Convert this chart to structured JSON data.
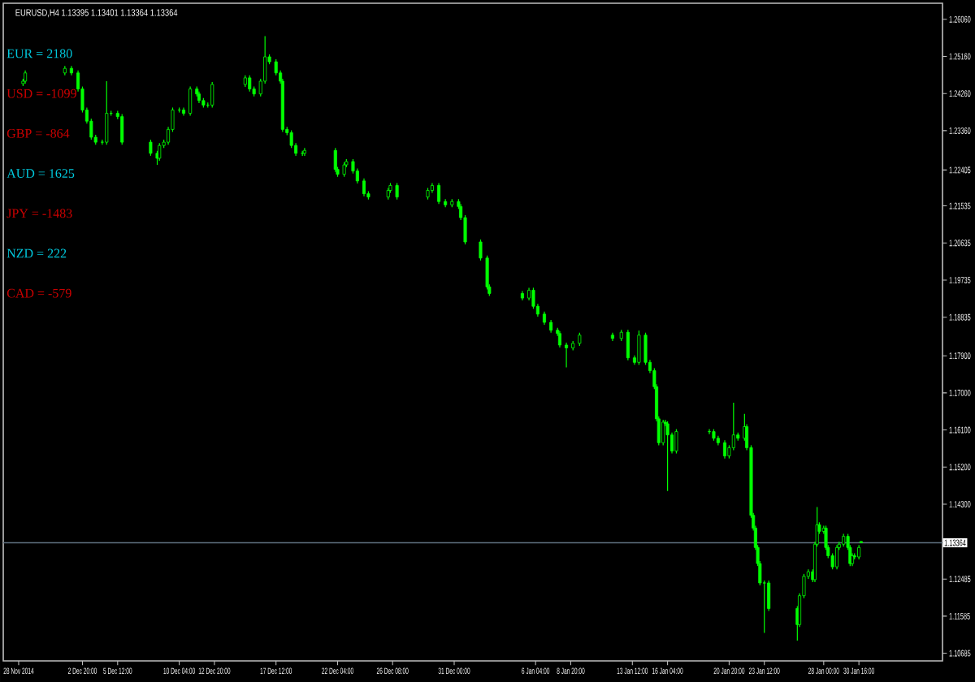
{
  "chart_data": {
    "type": "candlestick",
    "title": "EURUSD,H4 1.13395 1.13401 1.13364 1.13364",
    "color": "#00ff00",
    "x": [
      "2014-11-28T08:00",
      "2014-11-28T12:00",
      "2014-12-01T12:00",
      "2014-12-02T00:00",
      "2014-12-02T12:00",
      "2014-12-02T20:00",
      "2014-12-03T04:00",
      "2014-12-03T12:00",
      "2014-12-03T20:00",
      "2014-12-04T08:00",
      "2014-12-04T16:00",
      "2014-12-05T00:00",
      "2014-12-05T12:00",
      "2014-12-05T20:00",
      "2014-12-08T00:00",
      "2014-12-08T12:00",
      "2014-12-08T16:00",
      "2014-12-09T00:00",
      "2014-12-09T08:00",
      "2014-12-09T16:00",
      "2014-12-10T04:00",
      "2014-12-10T12:00",
      "2014-12-11T00:00",
      "2014-12-11T12:00",
      "2014-12-11T16:00",
      "2014-12-12T00:00",
      "2014-12-12T08:00",
      "2014-12-12T16:00",
      "2014-12-15T04:00",
      "2014-12-15T12:00",
      "2014-12-15T20:00",
      "2014-12-16T08:00",
      "2014-12-16T16:00",
      "2014-12-17T00:00",
      "2014-12-17T12:00",
      "2014-12-17T20:00",
      "2014-12-18T00:00",
      "2014-12-18T08:00",
      "2014-12-18T16:00",
      "2014-12-19T00:00",
      "2014-12-19T12:00",
      "2014-12-19T16:00",
      "2014-12-22T00:00",
      "2014-12-22T04:00",
      "2014-12-22T16:00",
      "2014-12-22T20:00",
      "2014-12-23T08:00",
      "2014-12-23T16:00",
      "2014-12-24T04:00",
      "2014-12-24T12:00",
      "2014-12-26T00:00",
      "2014-12-26T04:00",
      "2014-12-26T16:00",
      "2014-12-29T00:00",
      "2014-12-29T08:00",
      "2014-12-29T20:00",
      "2014-12-30T08:00",
      "2014-12-30T20:00",
      "2014-12-31T08:00",
      "2014-12-31T12:00",
      "2014-12-31T20:00",
      "2015-01-02T00:00",
      "2015-01-02T12:00",
      "2015-01-02T16:00",
      "2015-01-05T04:00",
      "2015-01-05T16:00",
      "2015-01-06T00:00",
      "2015-01-06T08:00",
      "2015-01-06T20:00",
      "2015-01-07T08:00",
      "2015-01-07T20:00",
      "2015-01-08T00:00",
      "2015-01-08T12:00",
      "2015-01-09T00:00",
      "2015-01-09T12:00",
      "2015-01-12T00:00",
      "2015-01-12T16:00",
      "2015-01-13T04:00",
      "2015-01-13T16:00",
      "2015-01-14T00:00",
      "2015-01-14T12:00",
      "2015-01-14T20:00",
      "2015-01-15T04:00",
      "2015-01-15T08:00",
      "2015-01-15T12:00",
      "2015-01-15T20:00",
      "2015-01-16T00:00",
      "2015-01-16T04:00",
      "2015-01-16T12:00",
      "2015-01-16T20:00",
      "2015-01-19T08:00",
      "2015-01-19T16:00",
      "2015-01-20T00:00",
      "2015-01-20T12:00",
      "2015-01-20T20:00",
      "2015-01-21T04:00",
      "2015-01-21T12:00",
      "2015-01-22T00:00",
      "2015-01-22T04:00",
      "2015-01-22T12:00",
      "2015-01-22T16:00",
      "2015-01-22T20:00",
      "2015-01-23T00:00",
      "2015-01-23T04:00",
      "2015-01-23T12:00",
      "2015-01-23T20:00",
      "2015-01-26T00:00",
      "2015-01-26T04:00",
      "2015-01-26T12:00",
      "2015-01-26T20:00",
      "2015-01-27T04:00",
      "2015-01-27T08:00",
      "2015-01-27T12:00",
      "2015-01-27T16:00",
      "2015-01-28T00:00",
      "2015-01-28T04:00",
      "2015-01-28T08:00",
      "2015-01-28T16:00",
      "2015-01-29T00:00",
      "2015-01-29T04:00",
      "2015-01-29T12:00",
      "2015-01-29T20:00",
      "2015-01-30T00:00",
      "2015-01-30T04:00",
      "2015-01-30T08:00",
      "2015-01-30T16:00",
      "2015-01-30T20:00"
    ],
    "ohlc": [
      [
        1.245,
        1.2462,
        1.2444,
        1.2456
      ],
      [
        1.2456,
        1.2482,
        1.245,
        1.2476
      ],
      [
        1.2476,
        1.2493,
        1.247,
        1.2487
      ],
      [
        1.2487,
        1.2493,
        1.247,
        1.2476
      ],
      [
        1.2476,
        1.2482,
        1.2431,
        1.2437
      ],
      [
        1.2437,
        1.2443,
        1.238,
        1.2386
      ],
      [
        1.2386,
        1.2392,
        1.2353,
        1.2359
      ],
      [
        1.2359,
        1.2365,
        1.2314,
        1.232
      ],
      [
        1.232,
        1.2326,
        1.2302,
        1.2308
      ],
      [
        1.2308,
        1.2314,
        1.2302,
        1.2308
      ],
      [
        1.2308,
        1.2456,
        1.2302,
        1.2378
      ],
      [
        1.2378,
        1.2384,
        1.2372,
        1.2378
      ],
      [
        1.2378,
        1.2384,
        1.2364,
        1.237
      ],
      [
        1.237,
        1.2376,
        1.2302,
        1.2308
      ],
      [
        1.2308,
        1.2314,
        1.2275,
        1.2281
      ],
      [
        1.2281,
        1.2287,
        1.2253,
        1.2269
      ],
      [
        1.2269,
        1.2306,
        1.2263,
        1.23
      ],
      [
        1.23,
        1.2314,
        1.2294,
        1.2308
      ],
      [
        1.2308,
        1.2345,
        1.2302,
        1.2339
      ],
      [
        1.2339,
        1.2392,
        1.2333,
        1.2386
      ],
      [
        1.2386,
        1.2392,
        1.238,
        1.2386
      ],
      [
        1.2386,
        1.2392,
        1.2372,
        1.2378
      ],
      [
        1.2378,
        1.2443,
        1.2372,
        1.2437
      ],
      [
        1.2437,
        1.2443,
        1.2419,
        1.2425
      ],
      [
        1.2425,
        1.2431,
        1.2403,
        1.2409
      ],
      [
        1.2409,
        1.2415,
        1.2392,
        1.2398
      ],
      [
        1.2398,
        1.2404,
        1.2392,
        1.2398
      ],
      [
        1.2398,
        1.2454,
        1.2392,
        1.2448
      ],
      [
        1.2448,
        1.247,
        1.2442,
        1.2464
      ],
      [
        1.2464,
        1.247,
        1.2431,
        1.2437
      ],
      [
        1.2437,
        1.2443,
        1.2419,
        1.2425
      ],
      [
        1.2425,
        1.2462,
        1.2419,
        1.2456
      ],
      [
        1.2456,
        1.2565,
        1.245,
        1.2515
      ],
      [
        1.2515,
        1.2521,
        1.2497,
        1.2503
      ],
      [
        1.2503,
        1.2509,
        1.247,
        1.2476
      ],
      [
        1.2476,
        1.2482,
        1.245,
        1.2456
      ],
      [
        1.2456,
        1.2462,
        1.2333,
        1.2339
      ],
      [
        1.2339,
        1.2345,
        1.2325,
        1.2331
      ],
      [
        1.2331,
        1.2337,
        1.2294,
        1.23
      ],
      [
        1.23,
        1.2306,
        1.2275,
        1.2281
      ],
      [
        1.2281,
        1.2287,
        1.2275,
        1.2281
      ],
      [
        1.2281,
        1.2294,
        1.2275,
        1.2288
      ],
      [
        1.2288,
        1.2294,
        1.2236,
        1.2242
      ],
      [
        1.2242,
        1.2248,
        1.2224,
        1.223
      ],
      [
        1.223,
        1.2259,
        1.2224,
        1.2253
      ],
      [
        1.2253,
        1.2267,
        1.2247,
        1.2261
      ],
      [
        1.2261,
        1.2267,
        1.2232,
        1.2238
      ],
      [
        1.2238,
        1.2244,
        1.2208,
        1.2214
      ],
      [
        1.2214,
        1.222,
        1.2177,
        1.2183
      ],
      [
        1.2183,
        1.2189,
        1.2169,
        1.2175
      ],
      [
        1.2175,
        1.2197,
        1.2169,
        1.2191
      ],
      [
        1.2191,
        1.2209,
        1.2185,
        1.2203
      ],
      [
        1.2203,
        1.2209,
        1.2169,
        1.2175
      ],
      [
        1.2175,
        1.2197,
        1.2169,
        1.2191
      ],
      [
        1.2191,
        1.2209,
        1.2185,
        1.2203
      ],
      [
        1.2203,
        1.2209,
        1.2158,
        1.2164
      ],
      [
        1.2164,
        1.217,
        1.215,
        1.2156
      ],
      [
        1.2156,
        1.217,
        1.215,
        1.2164
      ],
      [
        1.2164,
        1.217,
        1.2146,
        1.2152
      ],
      [
        1.2152,
        1.2158,
        1.2119,
        1.2125
      ],
      [
        1.2125,
        1.2131,
        1.206,
        1.2066
      ],
      [
        1.2066,
        1.2072,
        1.2021,
        1.2027
      ],
      [
        1.2027,
        1.2033,
        1.1951,
        1.1957
      ],
      [
        1.1957,
        1.1963,
        1.1935,
        1.1941
      ],
      [
        1.1941,
        1.1947,
        1.1924,
        1.193
      ],
      [
        1.193,
        1.1955,
        1.1924,
        1.1949
      ],
      [
        1.1949,
        1.1955,
        1.1904,
        1.191
      ],
      [
        1.191,
        1.1916,
        1.1885,
        1.1891
      ],
      [
        1.1891,
        1.1897,
        1.1865,
        1.1871
      ],
      [
        1.1871,
        1.1877,
        1.1846,
        1.1852
      ],
      [
        1.1852,
        1.1858,
        1.1838,
        1.1844
      ],
      [
        1.1844,
        1.185,
        1.181,
        1.1816
      ],
      [
        1.1816,
        1.1822,
        1.1762,
        1.1809
      ],
      [
        1.1809,
        1.1826,
        1.1803,
        1.182
      ],
      [
        1.182,
        1.1846,
        1.1814,
        1.184
      ],
      [
        1.184,
        1.1846,
        1.1826,
        1.1832
      ],
      [
        1.1832,
        1.1853,
        1.1826,
        1.1847
      ],
      [
        1.1847,
        1.1853,
        1.1779,
        1.1785
      ],
      [
        1.1785,
        1.1791,
        1.1768,
        1.1774
      ],
      [
        1.1774,
        1.1851,
        1.1768,
        1.184
      ],
      [
        1.184,
        1.1846,
        1.1768,
        1.1774
      ],
      [
        1.1774,
        1.178,
        1.1748,
        1.1754
      ],
      [
        1.1754,
        1.176,
        1.1709,
        1.1715
      ],
      [
        1.1715,
        1.1721,
        1.1631,
        1.1637
      ],
      [
        1.1637,
        1.1643,
        1.1573,
        1.1579
      ],
      [
        1.1579,
        1.1635,
        1.1573,
        1.1629
      ],
      [
        1.1629,
        1.1635,
        1.1619,
        1.1625
      ],
      [
        1.1625,
        1.1631,
        1.1462,
        1.1598
      ],
      [
        1.1598,
        1.1604,
        1.1553,
        1.1559
      ],
      [
        1.1559,
        1.1612,
        1.1553,
        1.1606
      ],
      [
        1.1606,
        1.1612,
        1.16,
        1.1606
      ],
      [
        1.1606,
        1.1612,
        1.1584,
        1.159
      ],
      [
        1.159,
        1.1596,
        1.1573,
        1.1579
      ],
      [
        1.1579,
        1.1585,
        1.1541,
        1.1547
      ],
      [
        1.1547,
        1.1573,
        1.1541,
        1.1567
      ],
      [
        1.1567,
        1.1676,
        1.1561,
        1.1598
      ],
      [
        1.1598,
        1.1604,
        1.1584,
        1.159
      ],
      [
        1.159,
        1.1649,
        1.1584,
        1.1618
      ],
      [
        1.1618,
        1.1624,
        1.1561,
        1.1567
      ],
      [
        1.1567,
        1.1573,
        1.1397,
        1.1403
      ],
      [
        1.1403,
        1.1409,
        1.1366,
        1.1372
      ],
      [
        1.1372,
        1.1378,
        1.1319,
        1.1325
      ],
      [
        1.1325,
        1.1331,
        1.128,
        1.1286
      ],
      [
        1.1286,
        1.1292,
        1.1233,
        1.1239
      ],
      [
        1.1239,
        1.1245,
        1.1118,
        1.1239
      ],
      [
        1.1239,
        1.1245,
        1.1171,
        1.1177
      ],
      [
        1.1177,
        1.1183,
        1.1099,
        1.1138
      ],
      [
        1.1138,
        1.1214,
        1.1132,
        1.1208
      ],
      [
        1.1208,
        1.1261,
        1.1202,
        1.1255
      ],
      [
        1.1255,
        1.1272,
        1.1249,
        1.1266
      ],
      [
        1.1266,
        1.1272,
        1.1241,
        1.1247
      ],
      [
        1.1247,
        1.1339,
        1.1241,
        1.1333
      ],
      [
        1.1333,
        1.1423,
        1.1327,
        1.138
      ],
      [
        1.138,
        1.1386,
        1.1358,
        1.1364
      ],
      [
        1.1364,
        1.1378,
        1.1358,
        1.1372
      ],
      [
        1.1372,
        1.1378,
        1.1319,
        1.1325
      ],
      [
        1.1325,
        1.1331,
        1.1299,
        1.1305
      ],
      [
        1.1305,
        1.1311,
        1.1272,
        1.1278
      ],
      [
        1.1278,
        1.1331,
        1.1272,
        1.1325
      ],
      [
        1.1325,
        1.1339,
        1.1319,
        1.1333
      ],
      [
        1.1333,
        1.1358,
        1.1327,
        1.1352
      ],
      [
        1.1352,
        1.1358,
        1.1319,
        1.1325
      ],
      [
        1.1325,
        1.1331,
        1.128,
        1.1286
      ],
      [
        1.1286,
        1.1311,
        1.128,
        1.1305
      ],
      [
        1.1305,
        1.1311,
        1.1296,
        1.1302
      ],
      [
        1.1302,
        1.1331,
        1.1296,
        1.1325
      ],
      [
        1.13395,
        1.13401,
        1.13364,
        1.13364
      ]
    ],
    "xlim": [
      "2014-11-26T20:00",
      "2015-02-06T00:00"
    ],
    "ylim": [
      1.105,
      1.2645
    ],
    "xticks": [
      {
        "value": "2014-11-28T00:00",
        "label": "28 Nov 2014"
      },
      {
        "value": "2014-12-02T20:00",
        "label": "2 Dec 20:00"
      },
      {
        "value": "2014-12-05T12:00",
        "label": "5 Dec 12:00"
      },
      {
        "value": "2014-12-10T04:00",
        "label": "10 Dec 04:00"
      },
      {
        "value": "2014-12-12T20:00",
        "label": "12 Dec 20:00"
      },
      {
        "value": "2014-12-17T12:00",
        "label": "17 Dec 12:00"
      },
      {
        "value": "2014-12-22T04:00",
        "label": "22 Dec 04:00"
      },
      {
        "value": "2014-12-26T08:00",
        "label": "26 Dec 08:00"
      },
      {
        "value": "2014-12-31T00:00",
        "label": "31 Dec 00:00"
      },
      {
        "value": "2015-01-06T04:00",
        "label": "6 Jan 04:00"
      },
      {
        "value": "2015-01-08T20:00",
        "label": "8 Jan 20:00"
      },
      {
        "value": "2015-01-13T12:00",
        "label": "13 Jan 12:00"
      },
      {
        "value": "2015-01-16T04:00",
        "label": "16 Jan 04:00"
      },
      {
        "value": "2015-01-20T20:00",
        "label": "20 Jan 20:00"
      },
      {
        "value": "2015-01-23T12:00",
        "label": "23 Jan 12:00"
      },
      {
        "value": "2015-01-28T00:00",
        "label": "28 Jan 00:00"
      },
      {
        "value": "2015-01-30T16:00",
        "label": "30 Jan 16:00"
      }
    ],
    "yticks": [
      {
        "value": 1.2606,
        "label": "1.26060"
      },
      {
        "value": 1.2516,
        "label": "1.25160"
      },
      {
        "value": 1.2426,
        "label": "1.24260"
      },
      {
        "value": 1.2336,
        "label": "1.23360"
      },
      {
        "value": 1.22405,
        "label": "1.22405"
      },
      {
        "value": 1.21535,
        "label": "1.21535"
      },
      {
        "value": 1.20635,
        "label": "1.20635"
      },
      {
        "value": 1.19735,
        "label": "1.19735"
      },
      {
        "value": 1.18835,
        "label": "1.18835"
      },
      {
        "value": 1.179,
        "label": "1.17900"
      },
      {
        "value": 1.17,
        "label": "1.17000"
      },
      {
        "value": 1.161,
        "label": "1.16100"
      },
      {
        "value": 1.152,
        "label": "1.15200"
      },
      {
        "value": 1.143,
        "label": "1.14300"
      },
      {
        "value": 1.12485,
        "label": "1.12485"
      },
      {
        "value": 1.11585,
        "label": "1.11585"
      },
      {
        "value": 1.10685,
        "label": "1.10685"
      }
    ],
    "ref_lines": [
      {
        "axis": "y",
        "value": 1.13364,
        "label": "1.13364",
        "color": "#5f7080"
      }
    ],
    "annotations": [
      "EUR = 2180",
      "USD = -1099",
      "GBP = -864",
      "AUD = 1625",
      "JPY = -1483",
      "NZD = 222",
      "CAD = -579"
    ]
  }
}
